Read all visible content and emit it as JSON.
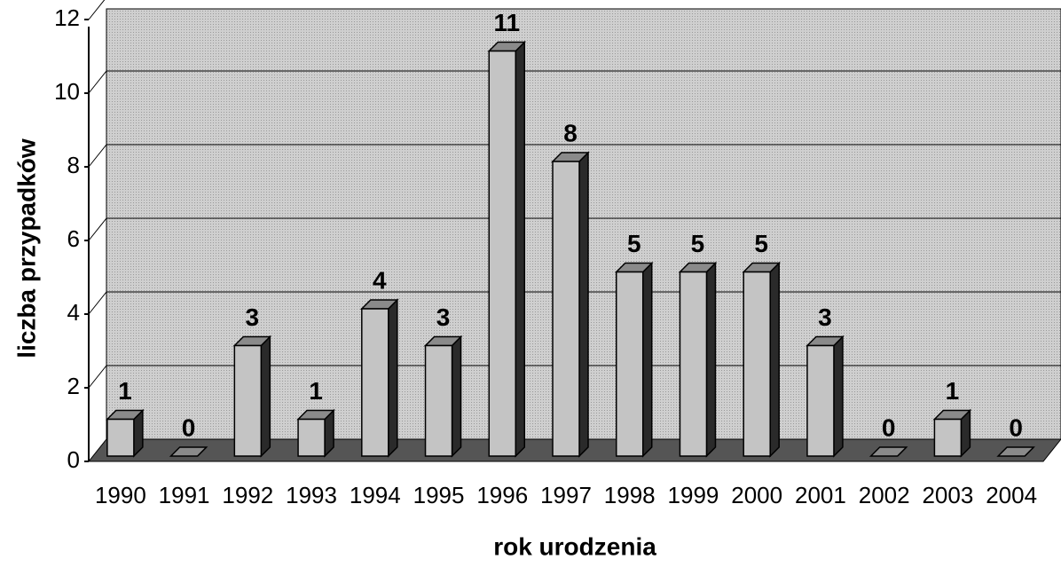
{
  "chart_data": {
    "type": "bar3d",
    "x_label": "rok urodzenia",
    "y_label": "liczba przypadków",
    "categories": [
      "1990",
      "1991",
      "1992",
      "1993",
      "1994",
      "1995",
      "1996",
      "1997",
      "1998",
      "1999",
      "2000",
      "2001",
      "2002",
      "2003",
      "2004"
    ],
    "values": [
      1,
      0,
      3,
      1,
      4,
      3,
      11,
      8,
      5,
      5,
      5,
      3,
      0,
      1,
      0
    ],
    "color": "#c4c4c4",
    "ylim": [
      0,
      12
    ],
    "yticks": [
      0,
      2,
      4,
      6,
      8,
      10,
      12
    ],
    "grid": true
  }
}
